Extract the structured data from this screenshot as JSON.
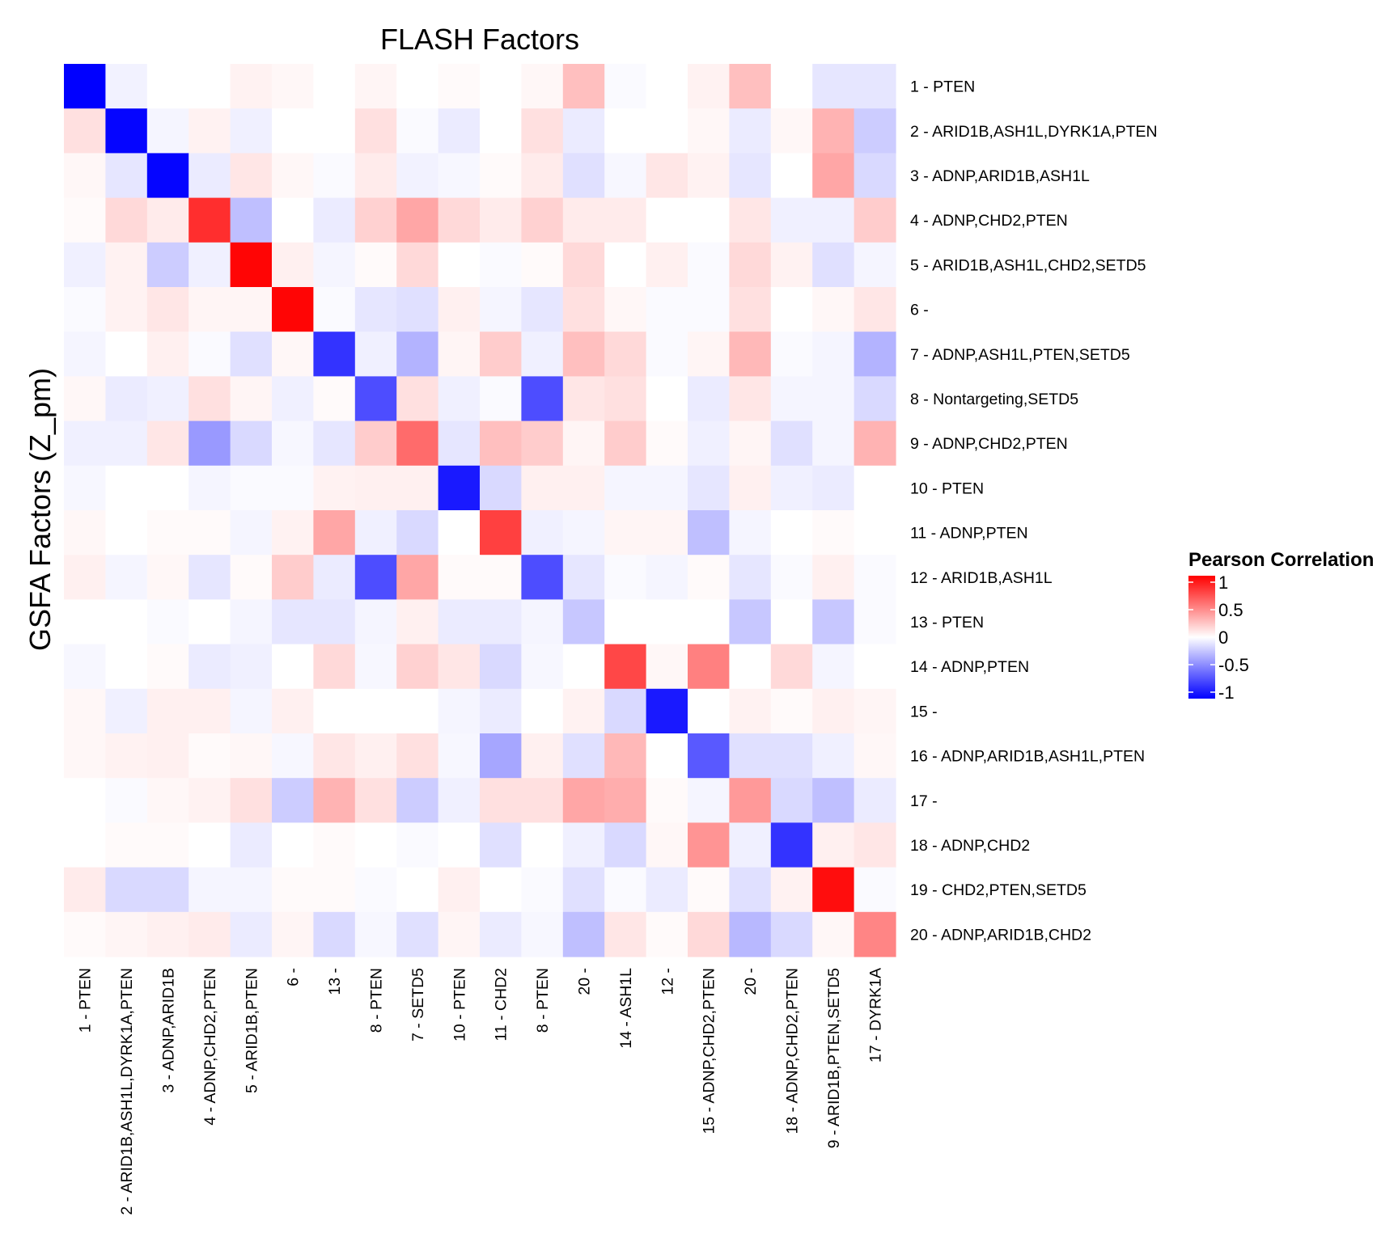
{
  "chart_data": {
    "type": "heatmap",
    "title": "FLASH Factors",
    "xlabel": "",
    "ylabel": "GSFA Factors (Z_pm)",
    "rows": [
      "1 - PTEN",
      "2 - ARID1B,ASH1L,DYRK1A,PTEN",
      "3 - ADNP,ARID1B,ASH1L",
      "4 - ADNP,CHD2,PTEN",
      "5 - ARID1B,ASH1L,CHD2,SETD5",
      "6 -",
      "7 - ADNP,ASH1L,PTEN,SETD5",
      "8 - Nontargeting,SETD5",
      "9 - ADNP,CHD2,PTEN",
      "10 - PTEN",
      "11 - ADNP,PTEN",
      "12 - ARID1B,ASH1L",
      "13 - PTEN",
      "14 - ADNP,PTEN",
      "15 -",
      "16 - ADNP,ARID1B,ASH1L,PTEN",
      "17 -",
      "18 - ADNP,CHD2",
      "19 - CHD2,PTEN,SETD5",
      "20 - ADNP,ARID1B,CHD2"
    ],
    "columns": [
      "1 - PTEN",
      "2 - ARID1B,ASH1L,DYRK1A,PTEN",
      "3 - ADNP,ARID1B",
      "4 - ADNP,CHD2,PTEN",
      "5 - ARID1B,PTEN",
      "6 -",
      "13 -",
      "8 - PTEN",
      "7 - SETD5",
      "10 - PTEN",
      "11 - CHD2",
      "8 - PTEN",
      "20 -",
      "14 - ASH1L",
      "12 -",
      "15 - ADNP,CHD2,PTEN",
      "20 -",
      "18 - ADNP,CHD2,PTEN",
      "9 - ARID1B,PTEN,SETD5",
      "17 - DYRK1A"
    ],
    "values": [
      [
        -1.0,
        -0.05,
        0.0,
        0.0,
        0.05,
        0.03,
        0.0,
        0.04,
        0.0,
        0.02,
        0.0,
        0.03,
        0.25,
        -0.02,
        0.0,
        0.05,
        0.25,
        0.0,
        -0.1,
        -0.1
      ],
      [
        0.12,
        -0.98,
        -0.04,
        0.05,
        -0.06,
        0.0,
        0.0,
        0.12,
        -0.02,
        -0.08,
        0.0,
        0.12,
        -0.08,
        0.0,
        0.0,
        0.03,
        -0.08,
        0.03,
        0.3,
        -0.2
      ],
      [
        0.03,
        -0.1,
        -0.98,
        -0.08,
        0.1,
        0.03,
        -0.02,
        0.08,
        -0.05,
        -0.03,
        0.02,
        0.08,
        -0.12,
        -0.03,
        0.1,
        0.05,
        -0.1,
        0.0,
        0.35,
        -0.15
      ],
      [
        0.02,
        0.15,
        0.08,
        0.82,
        -0.25,
        0.0,
        -0.08,
        0.18,
        0.35,
        0.15,
        0.08,
        0.18,
        0.08,
        0.08,
        0.0,
        0.0,
        0.1,
        -0.06,
        -0.06,
        0.2
      ],
      [
        -0.06,
        0.05,
        -0.2,
        -0.06,
        0.98,
        0.06,
        -0.04,
        0.02,
        0.15,
        0.0,
        -0.02,
        0.02,
        0.15,
        0.0,
        0.06,
        -0.02,
        0.15,
        0.05,
        -0.12,
        -0.04
      ],
      [
        -0.02,
        0.05,
        0.1,
        0.04,
        0.04,
        0.98,
        -0.02,
        -0.1,
        -0.12,
        0.06,
        -0.04,
        -0.1,
        0.12,
        0.03,
        -0.02,
        -0.02,
        0.12,
        0.0,
        0.03,
        0.1
      ],
      [
        -0.04,
        0.0,
        0.06,
        -0.02,
        -0.12,
        0.03,
        -0.8,
        -0.06,
        -0.3,
        0.04,
        0.2,
        -0.06,
        0.25,
        0.15,
        -0.02,
        0.04,
        0.28,
        -0.02,
        -0.04,
        -0.3
      ],
      [
        0.03,
        -0.08,
        -0.06,
        0.12,
        0.04,
        -0.06,
        0.02,
        -0.7,
        0.12,
        -0.06,
        -0.02,
        -0.7,
        0.1,
        0.12,
        0.0,
        -0.08,
        0.1,
        -0.04,
        -0.04,
        -0.15
      ],
      [
        -0.06,
        -0.06,
        0.1,
        -0.4,
        -0.15,
        -0.03,
        -0.1,
        0.2,
        0.58,
        -0.1,
        0.25,
        0.2,
        0.04,
        0.2,
        0.02,
        -0.06,
        0.04,
        -0.12,
        -0.04,
        0.3
      ],
      [
        -0.03,
        0.0,
        0.0,
        -0.04,
        -0.02,
        -0.02,
        0.05,
        0.06,
        0.06,
        -0.9,
        -0.15,
        0.06,
        0.06,
        -0.04,
        -0.04,
        -0.1,
        0.06,
        -0.06,
        -0.08,
        0.0
      ],
      [
        0.03,
        0.0,
        0.02,
        0.02,
        -0.04,
        0.05,
        0.35,
        -0.06,
        -0.15,
        0.0,
        0.75,
        -0.06,
        -0.04,
        0.04,
        0.04,
        -0.25,
        -0.04,
        0.0,
        0.02,
        0.0
      ],
      [
        0.06,
        -0.04,
        0.03,
        -0.1,
        0.02,
        0.2,
        -0.08,
        -0.7,
        0.35,
        0.02,
        0.02,
        -0.7,
        -0.1,
        -0.02,
        -0.04,
        0.02,
        -0.1,
        -0.02,
        0.06,
        -0.02
      ],
      [
        0.0,
        0.0,
        -0.02,
        0.0,
        -0.04,
        -0.1,
        -0.1,
        -0.04,
        0.06,
        -0.08,
        -0.08,
        -0.04,
        -0.22,
        0.0,
        0.0,
        0.0,
        -0.22,
        0.0,
        -0.22,
        -0.02
      ],
      [
        -0.03,
        0.0,
        0.02,
        -0.08,
        -0.06,
        0.0,
        0.15,
        -0.03,
        0.18,
        0.1,
        -0.15,
        -0.03,
        0.0,
        0.72,
        0.03,
        0.5,
        0.0,
        0.15,
        -0.04,
        0.0
      ],
      [
        0.03,
        -0.06,
        0.06,
        0.06,
        -0.04,
        0.06,
        0.0,
        0.0,
        0.0,
        -0.04,
        -0.08,
        0.0,
        0.05,
        -0.15,
        -0.9,
        0.0,
        0.05,
        0.02,
        0.06,
        0.04
      ],
      [
        0.03,
        0.05,
        0.06,
        0.02,
        0.03,
        -0.03,
        0.1,
        0.06,
        0.12,
        -0.03,
        -0.35,
        0.06,
        -0.12,
        0.28,
        0.0,
        -0.65,
        -0.12,
        -0.12,
        -0.06,
        0.03
      ],
      [
        0.0,
        -0.02,
        0.03,
        0.05,
        0.12,
        -0.2,
        0.3,
        0.12,
        -0.2,
        -0.06,
        0.12,
        0.12,
        0.35,
        0.32,
        0.02,
        -0.04,
        0.4,
        -0.15,
        -0.25,
        -0.08
      ],
      [
        0.0,
        0.02,
        0.02,
        0.0,
        -0.08,
        0.0,
        0.02,
        0.0,
        -0.02,
        0.0,
        -0.12,
        0.0,
        -0.06,
        -0.15,
        0.03,
        0.42,
        -0.06,
        -0.8,
        0.06,
        0.1
      ],
      [
        0.08,
        -0.15,
        -0.15,
        -0.04,
        -0.04,
        0.02,
        0.02,
        -0.02,
        0.0,
        0.06,
        0.0,
        -0.02,
        -0.12,
        -0.02,
        -0.08,
        0.02,
        -0.12,
        0.05,
        0.95,
        -0.02
      ],
      [
        0.02,
        0.04,
        0.06,
        0.08,
        -0.08,
        0.04,
        -0.15,
        -0.03,
        -0.12,
        0.04,
        -0.08,
        -0.03,
        -0.25,
        0.1,
        0.02,
        0.15,
        -0.28,
        -0.15,
        0.03,
        0.48
      ]
    ],
    "color_scale": {
      "low": "#0000ff",
      "mid": "#ffffff",
      "high": "#ff0000",
      "domain": [
        -1,
        1
      ]
    },
    "legend": {
      "title": "Pearson Correlation",
      "ticks": [
        1,
        0.5,
        0,
        -0.5,
        -1
      ],
      "tick_labels": [
        "1",
        "0.5",
        "0",
        "-0.5",
        "-1"
      ],
      "position": "right"
    }
  }
}
